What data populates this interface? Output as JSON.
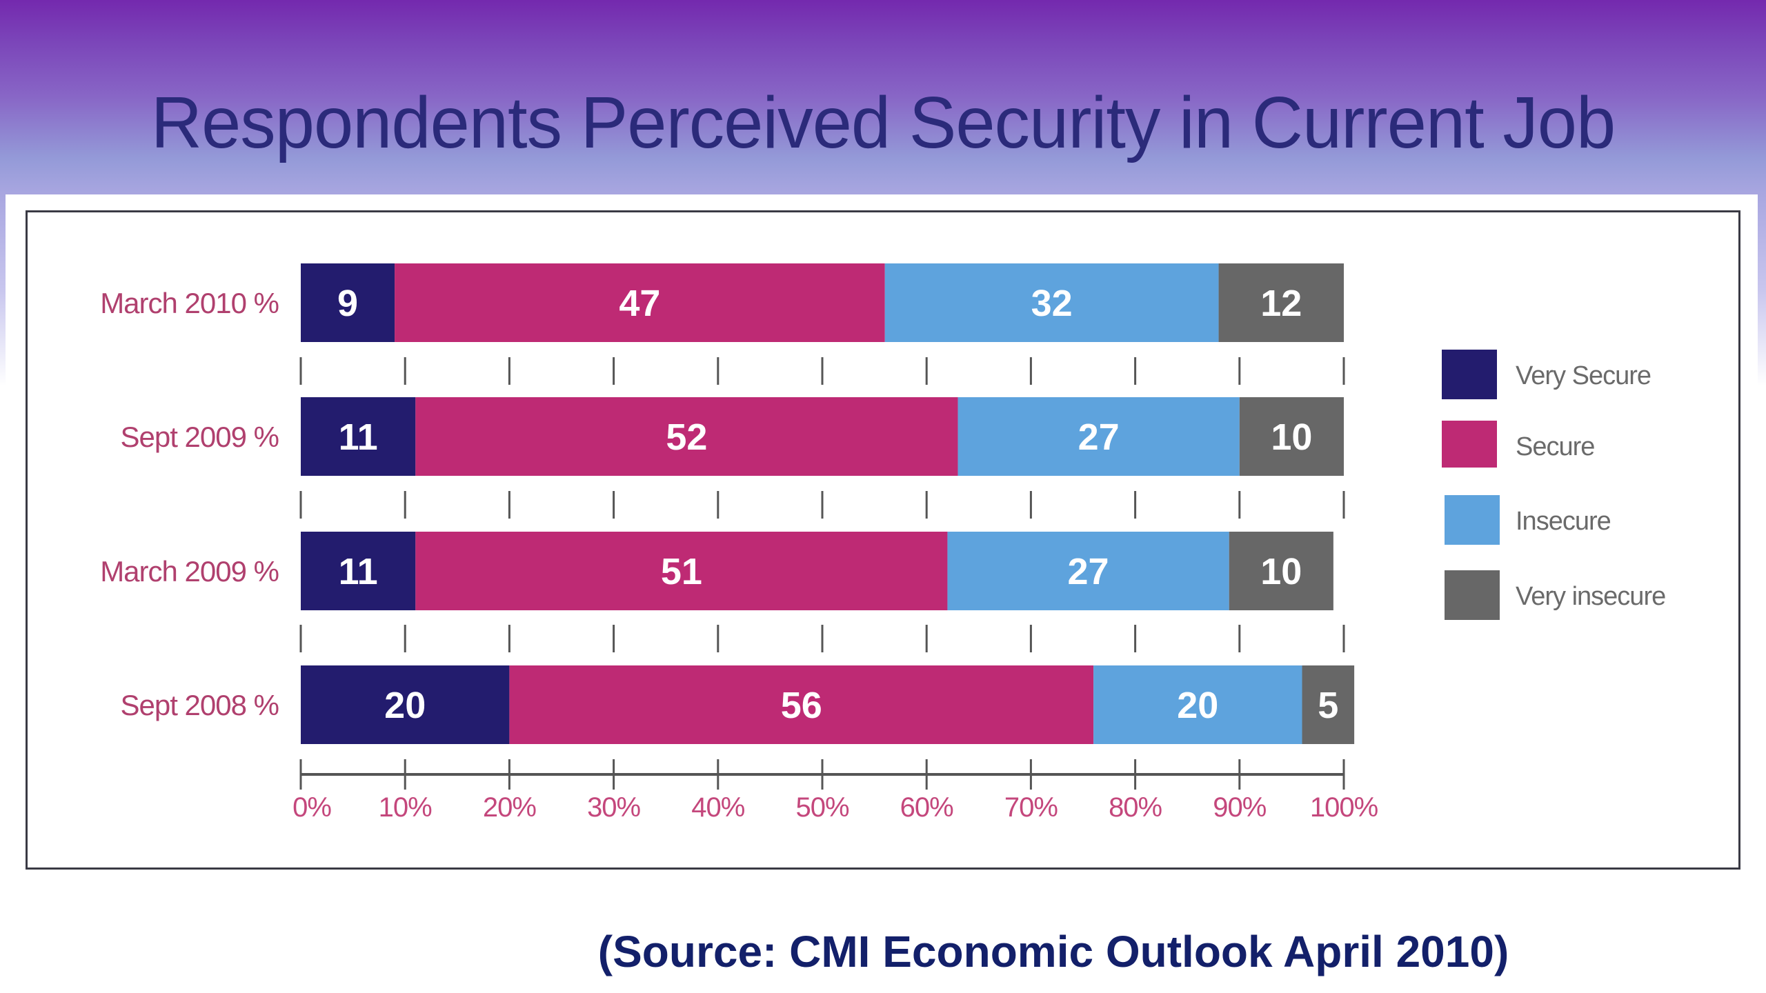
{
  "slide": {
    "title": "Respondents Perceived Security in Current Job",
    "source": "(Source: CMI Economic Outlook April 2010)"
  },
  "colors": {
    "very_secure": "#231c6e",
    "secure": "#be2a74",
    "insecure": "#5ea3dd",
    "very_insecure": "#676767",
    "category_label": "#b0406e",
    "tick_label": "#c4477c",
    "title": "#2b2a7a",
    "source": "#13206a"
  },
  "chart_data": {
    "type": "bar",
    "orientation": "horizontal",
    "stacked": true,
    "title": "Respondents Perceived Security in Current Job",
    "xlabel": "",
    "ylabel": "",
    "categories": [
      "March 2010 %",
      "Sept 2009 %",
      "March 2009 %",
      "Sept 2008 %"
    ],
    "series": [
      {
        "name": "Very Secure",
        "color": "#231c6e",
        "values": [
          9,
          11,
          11,
          20
        ]
      },
      {
        "name": "Secure",
        "color": "#be2a74",
        "values": [
          47,
          52,
          51,
          56
        ]
      },
      {
        "name": "Insecure",
        "color": "#5ea3dd",
        "values": [
          32,
          27,
          27,
          20
        ]
      },
      {
        "name": "Very insecure",
        "color": "#676767",
        "values": [
          12,
          10,
          10,
          5
        ]
      }
    ],
    "xlim": [
      0,
      100
    ],
    "xticks": [
      "0%",
      "10%",
      "20%",
      "30%",
      "40%",
      "50%",
      "60%",
      "70%",
      "80%",
      "90%",
      "100%"
    ],
    "grid": false,
    "legend": "right"
  }
}
